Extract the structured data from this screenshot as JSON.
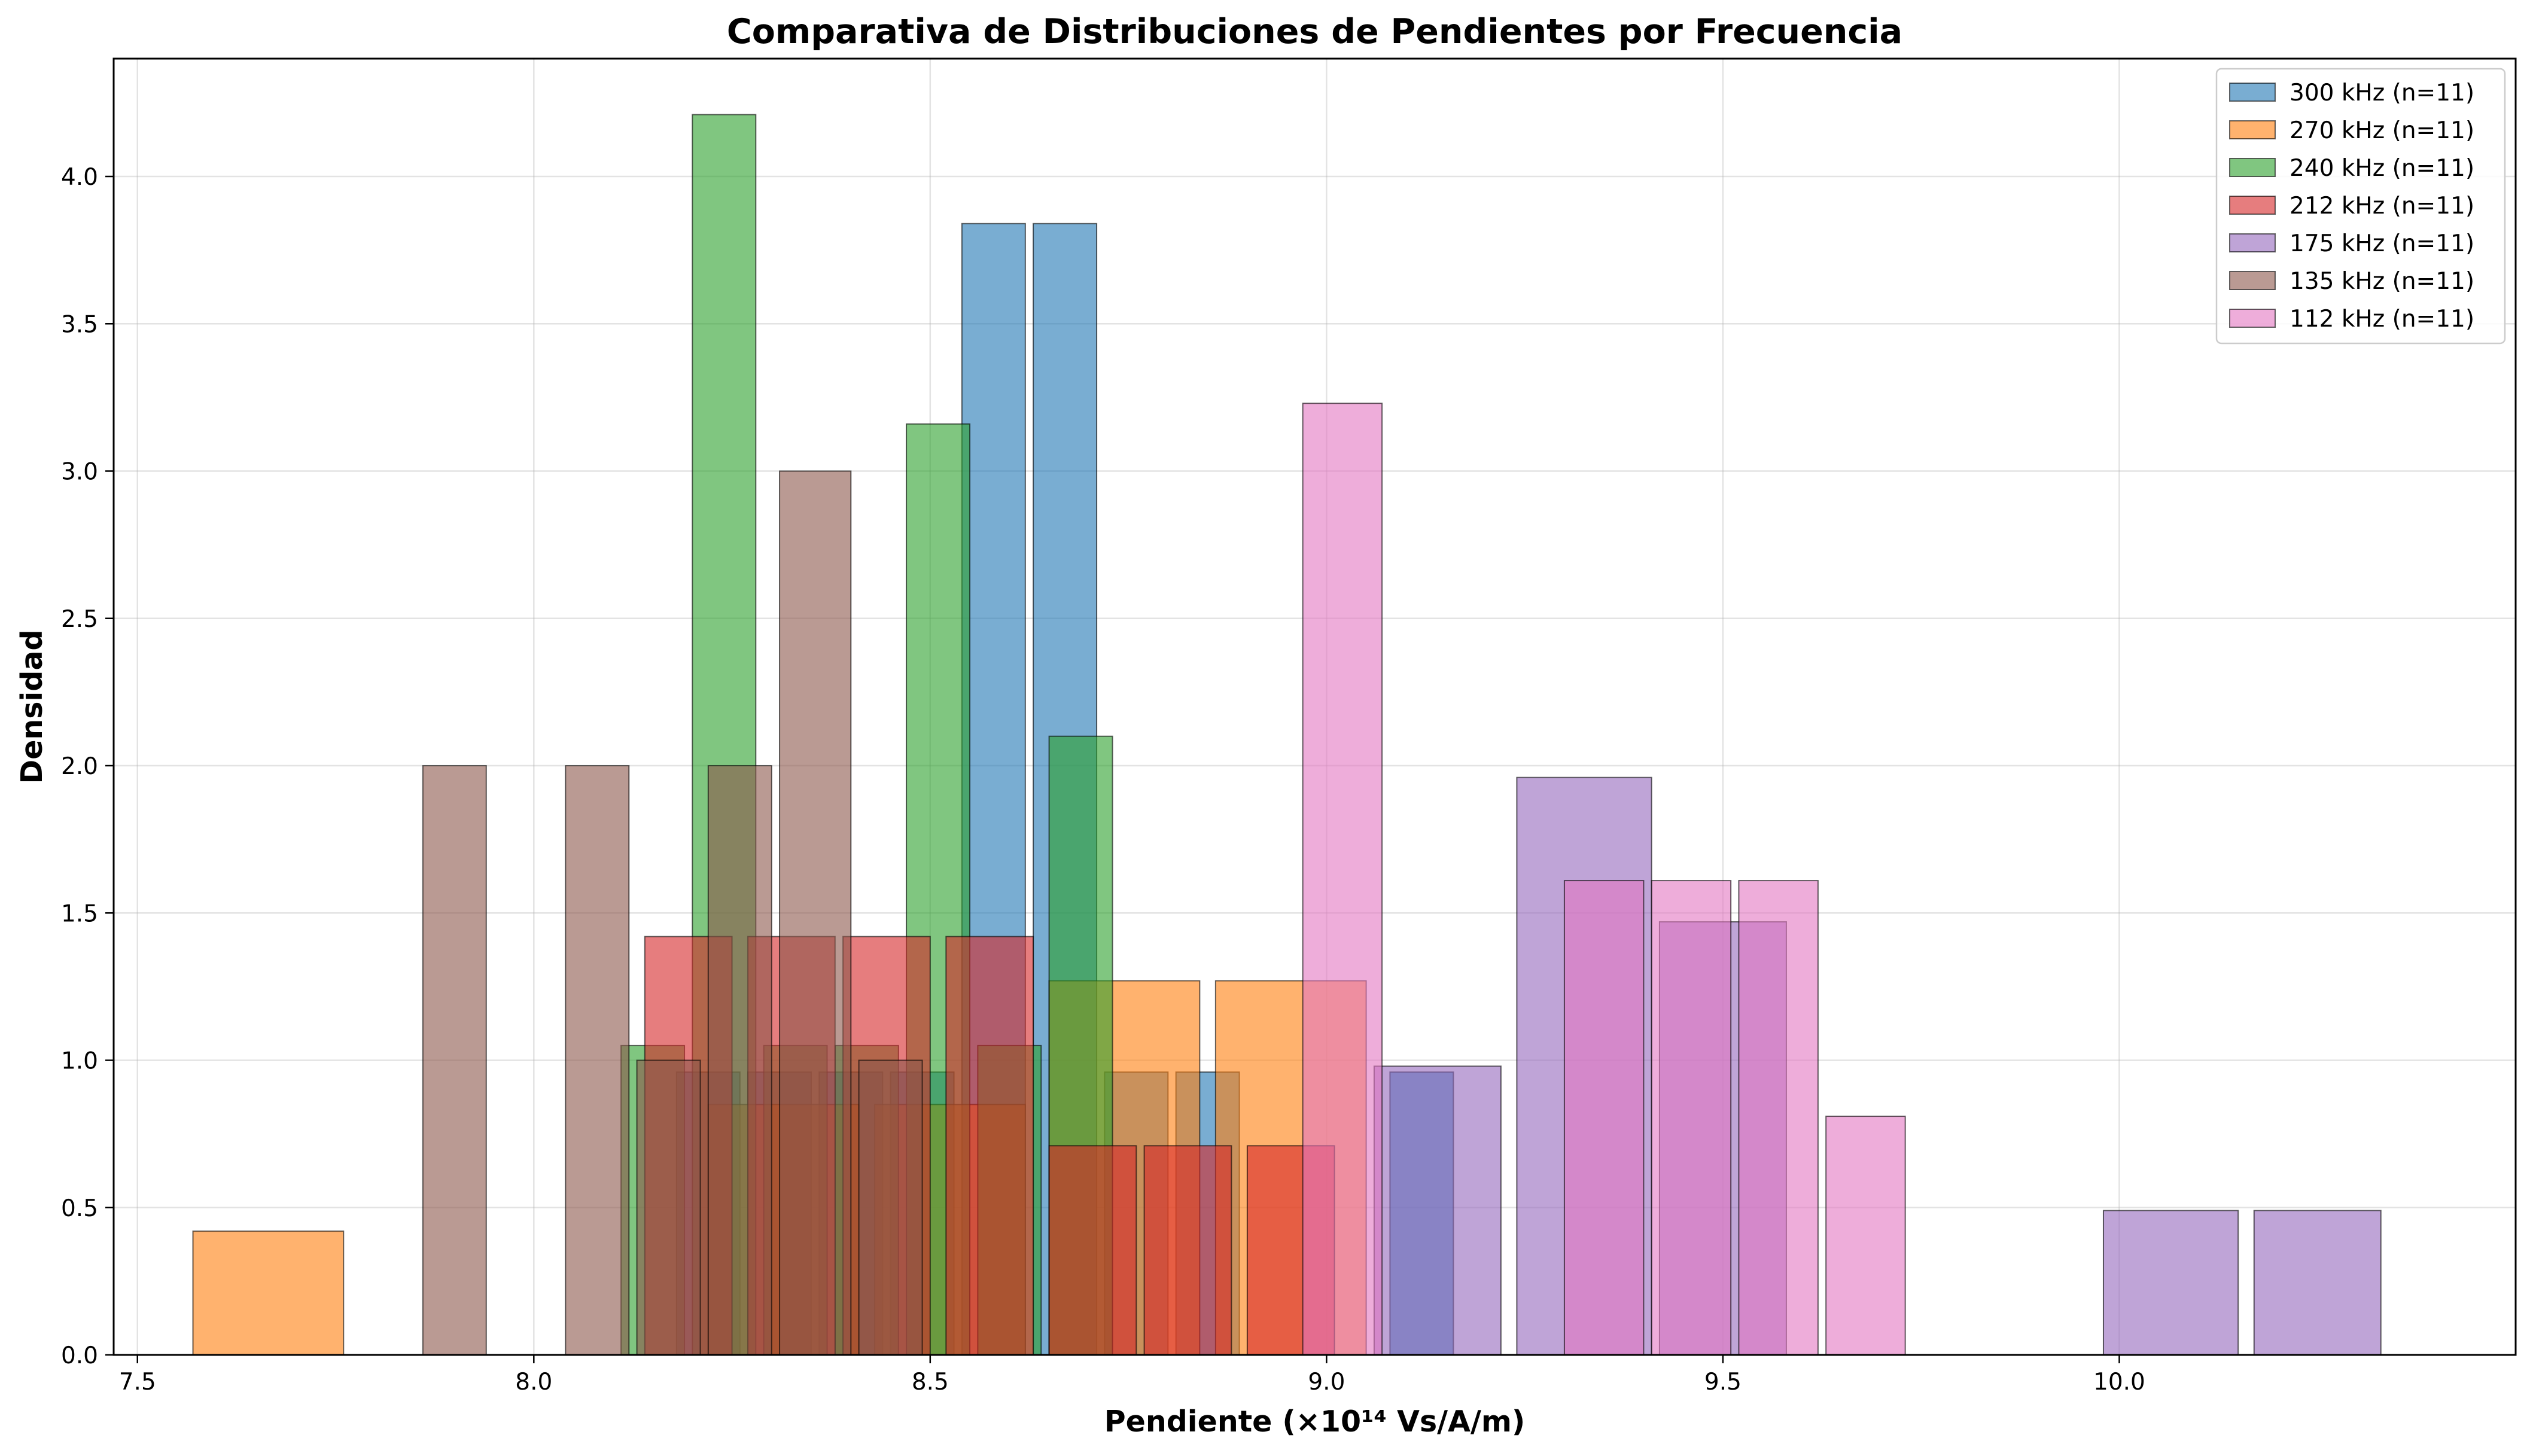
{
  "chart_data": {
    "type": "bar",
    "subtype": "overlapping-histogram",
    "title": "Comparativa de Distribuciones de Pendientes por Frecuencia",
    "xlabel": "Pendiente (×10¹⁴ Vs/A/m)",
    "ylabel": "Densidad",
    "xlim": [
      7.47,
      10.5
    ],
    "ylim": [
      0,
      4.4
    ],
    "x_ticks": [
      7.5,
      8.0,
      8.5,
      9.0,
      9.5,
      10.0
    ],
    "x_tick_labels": [
      "7.5",
      "8.0",
      "8.5",
      "9.0",
      "9.5",
      "10.0"
    ],
    "y_ticks": [
      0,
      0.5,
      1.0,
      1.5,
      2.0,
      2.5,
      3.0,
      3.5,
      4.0
    ],
    "y_tick_labels": [
      "0.0",
      "0.5",
      "1.0",
      "1.5",
      "2.0",
      "2.5",
      "3.0",
      "3.5",
      "4.0"
    ],
    "grid": true,
    "legend_position": "top-right",
    "bar_opacity": 0.6,
    "edge_color": "#000000",
    "series": [
      {
        "name": "300 kHz (n=11)",
        "color": "#1f77b4",
        "bars": [
          {
            "x0": 8.18,
            "x1": 8.26,
            "y": 0.96
          },
          {
            "x0": 8.27,
            "x1": 8.35,
            "y": 0.96
          },
          {
            "x0": 8.36,
            "x1": 8.44,
            "y": 0.96
          },
          {
            "x0": 8.45,
            "x1": 8.53,
            "y": 0.96
          },
          {
            "x0": 8.54,
            "x1": 8.62,
            "y": 3.84
          },
          {
            "x0": 8.63,
            "x1": 8.71,
            "y": 3.84
          },
          {
            "x0": 8.72,
            "x1": 8.8,
            "y": 0.96
          },
          {
            "x0": 8.81,
            "x1": 8.89,
            "y": 0.96
          },
          {
            "x0": 9.08,
            "x1": 9.16,
            "y": 0.96
          }
        ]
      },
      {
        "name": "270 kHz (n=11)",
        "color": "#ff7f0e",
        "bars": [
          {
            "x0": 7.57,
            "x1": 7.76,
            "y": 0.42
          },
          {
            "x0": 8.22,
            "x1": 8.41,
            "y": 0.85
          },
          {
            "x0": 8.43,
            "x1": 8.62,
            "y": 0.85
          },
          {
            "x0": 8.65,
            "x1": 8.84,
            "y": 1.27
          },
          {
            "x0": 8.86,
            "x1": 9.05,
            "y": 1.27
          }
        ]
      },
      {
        "name": "240 kHz (n=11)",
        "color": "#2ca02c",
        "bars": [
          {
            "x0": 8.11,
            "x1": 8.19,
            "y": 1.05
          },
          {
            "x0": 8.2,
            "x1": 8.28,
            "y": 4.21
          },
          {
            "x0": 8.29,
            "x1": 8.37,
            "y": 1.05
          },
          {
            "x0": 8.38,
            "x1": 8.46,
            "y": 1.05
          },
          {
            "x0": 8.47,
            "x1": 8.55,
            "y": 3.16
          },
          {
            "x0": 8.56,
            "x1": 8.64,
            "y": 1.05
          },
          {
            "x0": 8.65,
            "x1": 8.73,
            "y": 2.1
          }
        ]
      },
      {
        "name": "212 kHz (n=11)",
        "color": "#d62728",
        "bars": [
          {
            "x0": 8.14,
            "x1": 8.25,
            "y": 1.42
          },
          {
            "x0": 8.27,
            "x1": 8.38,
            "y": 1.42
          },
          {
            "x0": 8.39,
            "x1": 8.5,
            "y": 1.42
          },
          {
            "x0": 8.52,
            "x1": 8.63,
            "y": 1.42
          },
          {
            "x0": 8.65,
            "x1": 8.76,
            "y": 0.71
          },
          {
            "x0": 8.77,
            "x1": 8.88,
            "y": 0.71
          },
          {
            "x0": 8.9,
            "x1": 9.01,
            "y": 0.71
          }
        ]
      },
      {
        "name": "175 kHz (n=11)",
        "color": "#9467bd",
        "bars": [
          {
            "x0": 9.06,
            "x1": 9.22,
            "y": 0.98
          },
          {
            "x0": 9.24,
            "x1": 9.41,
            "y": 1.96
          },
          {
            "x0": 9.42,
            "x1": 9.58,
            "y": 1.47
          },
          {
            "x0": 9.98,
            "x1": 10.15,
            "y": 0.49
          },
          {
            "x0": 10.17,
            "x1": 10.33,
            "y": 0.49
          }
        ]
      },
      {
        "name": "135 kHz (n=11)",
        "color": "#8c564b",
        "bars": [
          {
            "x0": 7.86,
            "x1": 7.94,
            "y": 2.0
          },
          {
            "x0": 8.04,
            "x1": 8.12,
            "y": 2.0
          },
          {
            "x0": 8.13,
            "x1": 8.21,
            "y": 1.0
          },
          {
            "x0": 8.22,
            "x1": 8.3,
            "y": 2.0
          },
          {
            "x0": 8.31,
            "x1": 8.4,
            "y": 3.0
          },
          {
            "x0": 8.41,
            "x1": 8.49,
            "y": 1.0
          }
        ]
      },
      {
        "name": "112 kHz (n=11)",
        "color": "#e377c2",
        "bars": [
          {
            "x0": 8.97,
            "x1": 9.07,
            "y": 3.23
          },
          {
            "x0": 9.3,
            "x1": 9.4,
            "y": 1.61
          },
          {
            "x0": 9.41,
            "x1": 9.51,
            "y": 1.61
          },
          {
            "x0": 9.52,
            "x1": 9.62,
            "y": 1.61
          },
          {
            "x0": 9.63,
            "x1": 9.73,
            "y": 0.81
          }
        ]
      }
    ]
  }
}
